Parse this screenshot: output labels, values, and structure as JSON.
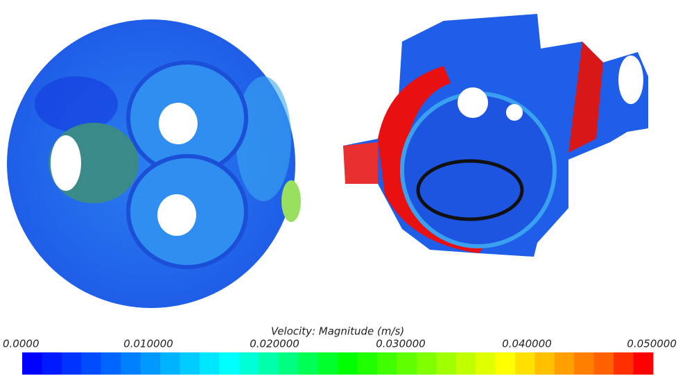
{
  "colorbar": {
    "title": "Velocity: Magnitude (m/s)",
    "lim": [
      0,
      0.05
    ],
    "ticks": [
      {
        "value": 0,
        "label": "0.0000"
      },
      {
        "value": 0.01,
        "label": "0.010000"
      },
      {
        "value": 0.02,
        "label": "0.020000"
      },
      {
        "value": 0.03,
        "label": "0.030000"
      },
      {
        "value": 0.04,
        "label": "0.040000"
      },
      {
        "value": 0.05,
        "label": "0.050000"
      }
    ],
    "colors": [
      "#0000ff",
      "#001aff",
      "#0033ff",
      "#004dff",
      "#0066ff",
      "#0080ff",
      "#0099ff",
      "#00b3ff",
      "#00ccff",
      "#00e6ff",
      "#00ffff",
      "#00ffd4",
      "#00ffaa",
      "#00ff80",
      "#00ff55",
      "#00ff2b",
      "#00ff00",
      "#20ff00",
      "#40ff00",
      "#60ff00",
      "#80ff00",
      "#a0ff00",
      "#c0ff00",
      "#e0ff00",
      "#ffff00",
      "#ffe000",
      "#ffc000",
      "#ffa000",
      "#ff8000",
      "#ff6000",
      "#ff3000",
      "#ff0000"
    ]
  }
}
